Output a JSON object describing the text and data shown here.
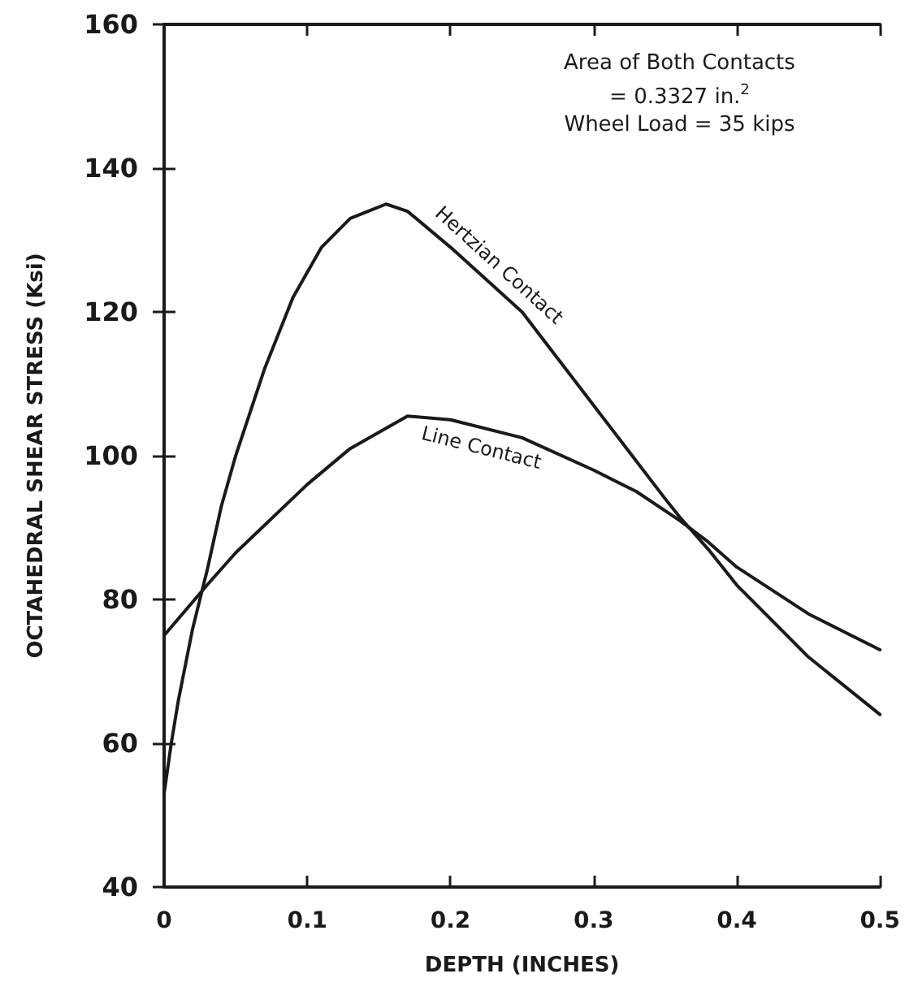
{
  "chart_data": {
    "type": "line",
    "xlabel": "DEPTH (INCHES)",
    "ylabel": "OCTAHEDRAL SHEAR STRESS (Ksi)",
    "annotations": [
      "Area of Both Contacts",
      "= 0.3327 in.$^{2}$",
      "Wheel Load = 35 kips"
    ],
    "series": [
      {
        "name": "Hertzian Contact",
        "color": "#1a1a1a",
        "x": [
          0,
          0.005,
          0.01,
          0.02,
          0.03,
          0.04,
          0.05,
          0.07,
          0.09,
          0.11,
          0.13,
          0.155,
          0.17,
          0.2,
          0.25,
          0.3,
          0.35,
          0.36,
          0.38,
          0.4,
          0.45,
          0.5
        ],
        "values": [
          53,
          60,
          66,
          76,
          84,
          93,
          100,
          112,
          122,
          129,
          133,
          135,
          134,
          129,
          120,
          107,
          94,
          91.5,
          87,
          82,
          72,
          64
        ]
      },
      {
        "name": "Line Contact",
        "color": "#1a1a1a",
        "x": [
          0,
          0.03,
          0.05,
          0.1,
          0.13,
          0.17,
          0.2,
          0.25,
          0.3,
          0.33,
          0.36,
          0.38,
          0.4,
          0.45,
          0.5
        ],
        "values": [
          75,
          82,
          86.5,
          96,
          101,
          105.5,
          105,
          102.5,
          98,
          95,
          91,
          88,
          84.5,
          78,
          73
        ]
      }
    ],
    "xlim": [
      0,
      0.5
    ],
    "xticks": [
      0,
      0.1,
      0.2,
      0.3,
      0.4,
      0.5
    ],
    "ylim": [
      40,
      160
    ],
    "yticks": [
      40,
      60,
      80,
      100,
      120,
      140,
      160
    ],
    "grid": false,
    "legend": false,
    "marker": "none",
    "line_style": "solid"
  }
}
